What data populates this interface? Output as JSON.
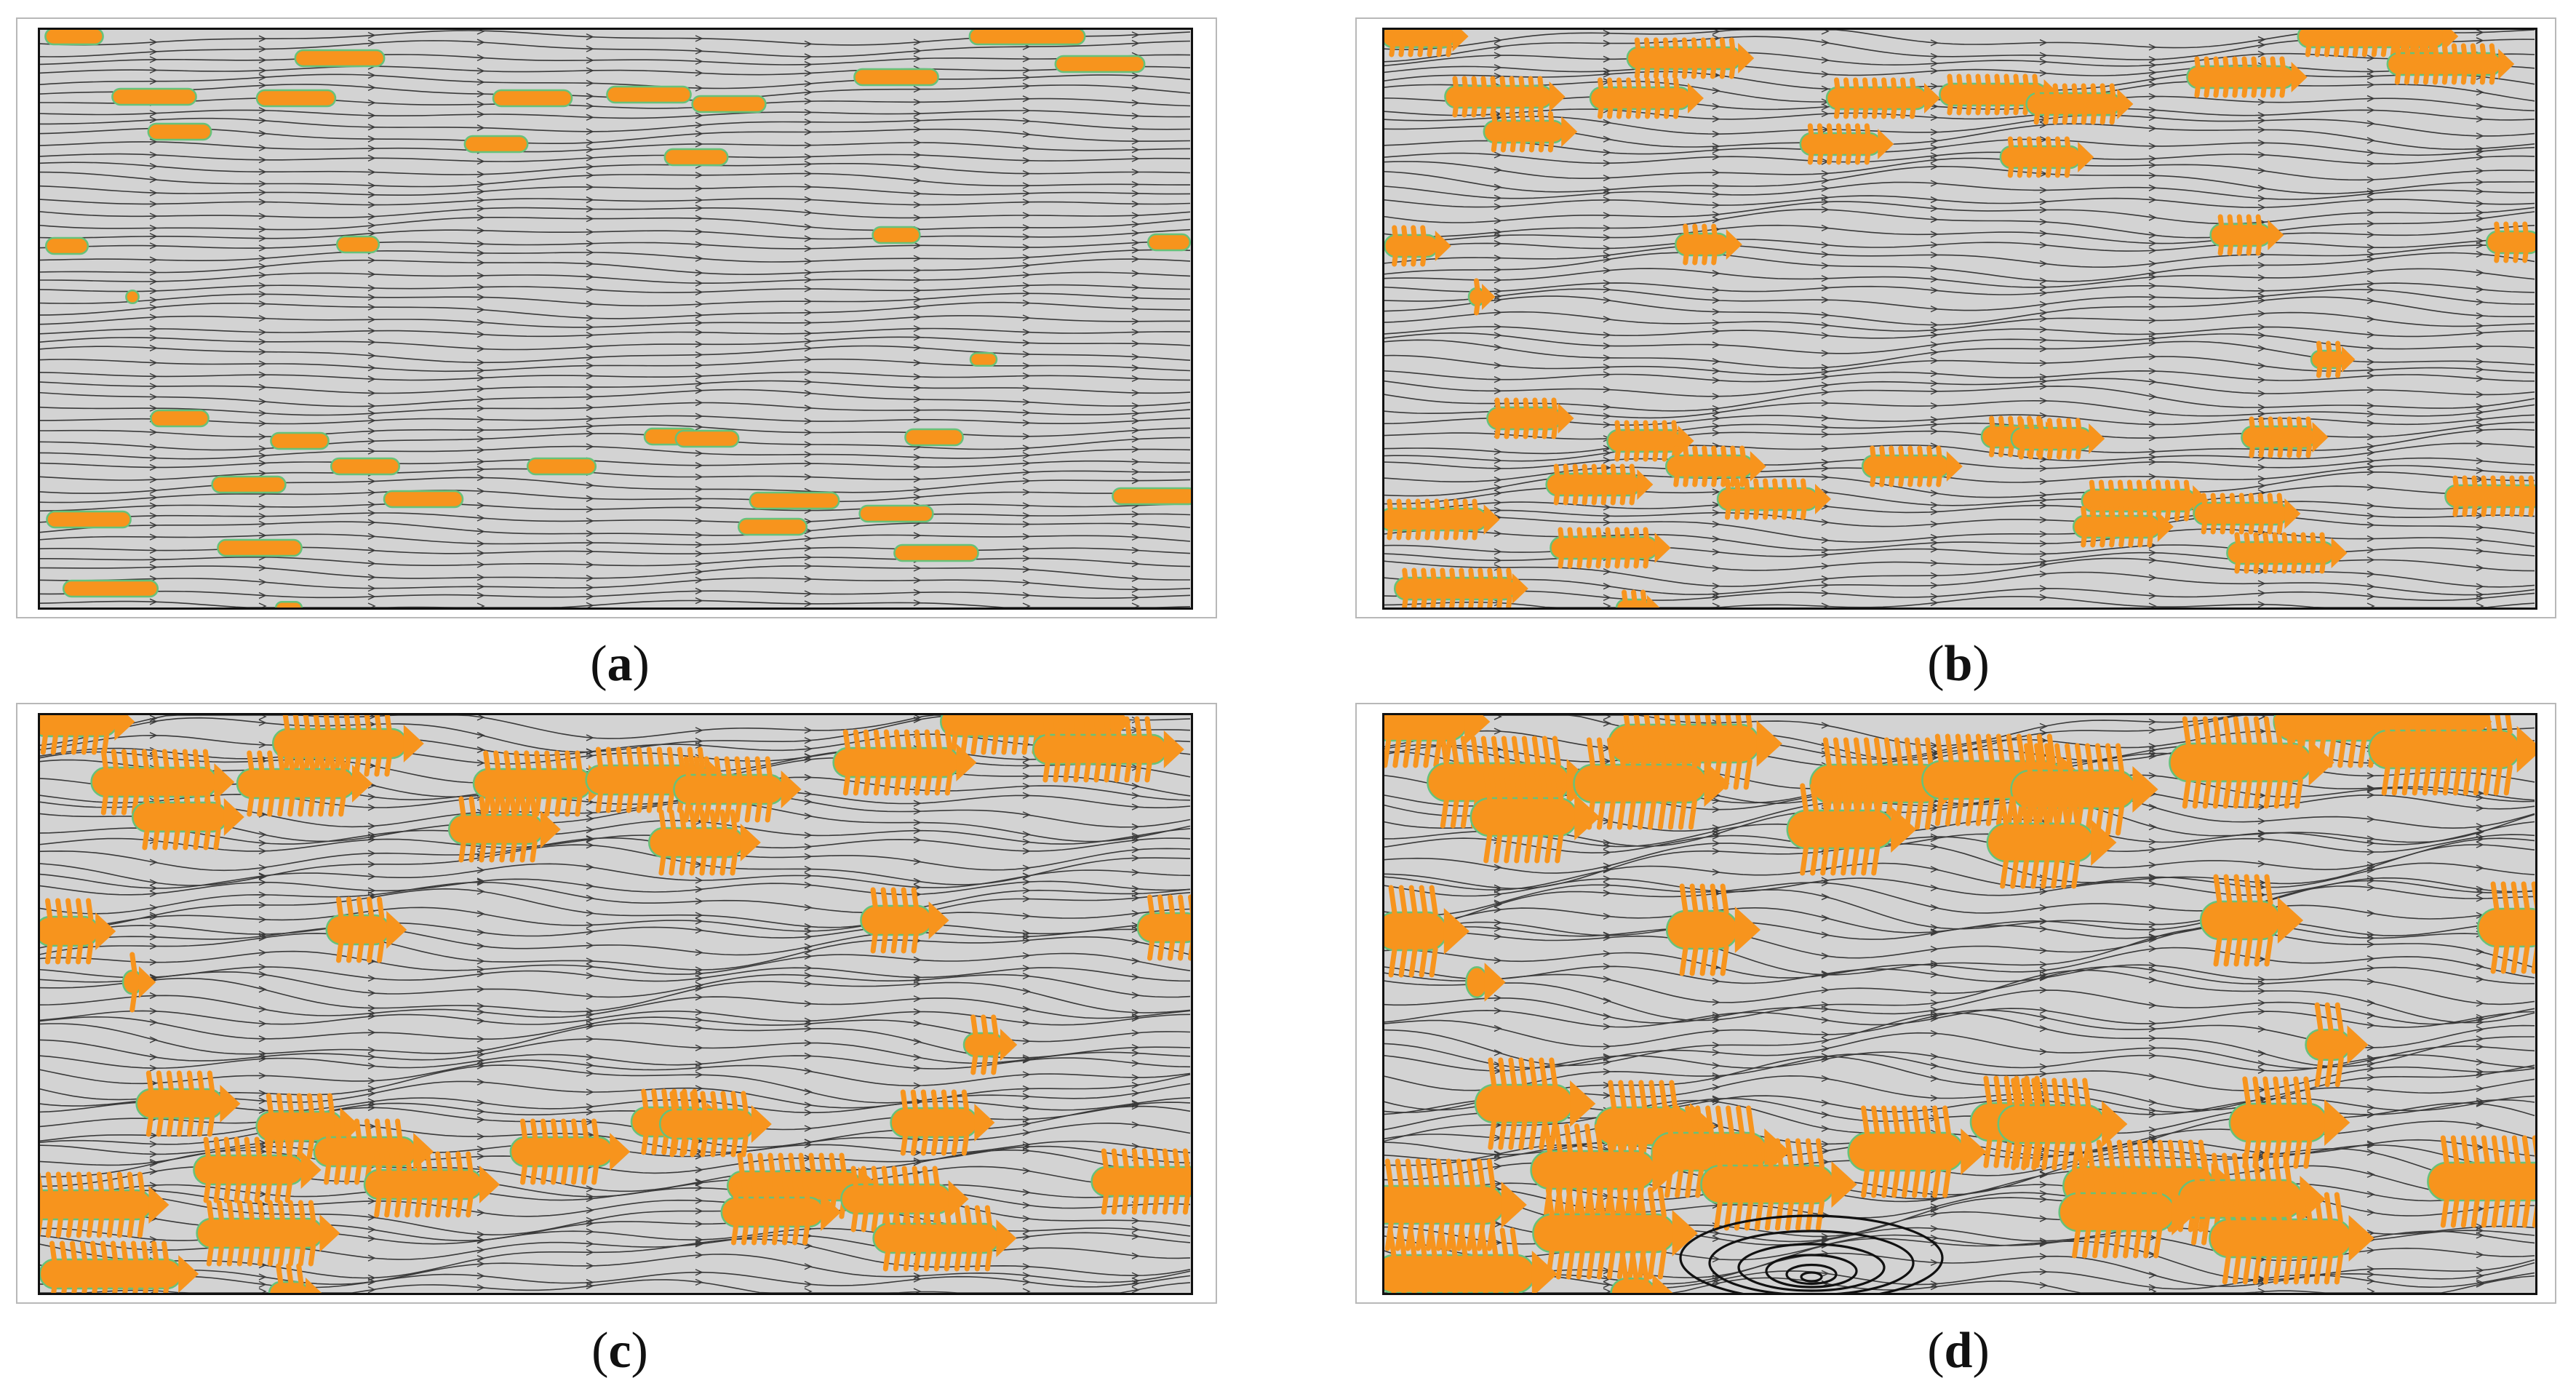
{
  "figure": {
    "panels": [
      {
        "id": "a",
        "caption_open": "(",
        "caption_letter": "a",
        "caption_close": ")",
        "growth_stage": 1
      },
      {
        "id": "b",
        "caption_open": "(",
        "caption_letter": "b",
        "caption_close": ")",
        "growth_stage": 2
      },
      {
        "id": "c",
        "caption_open": "(",
        "caption_letter": "c",
        "caption_close": ")",
        "growth_stage": 3
      },
      {
        "id": "d",
        "caption_open": "(",
        "caption_letter": "d",
        "caption_close": ")",
        "growth_stage": 4
      }
    ]
  },
  "colors": {
    "background": "#d3d3d3",
    "dendrite": "#f7941d",
    "dendrite_edge": "#66c27a",
    "streamline": "#3a3a3a",
    "frame": "#111111",
    "eddy": "#111111"
  }
}
